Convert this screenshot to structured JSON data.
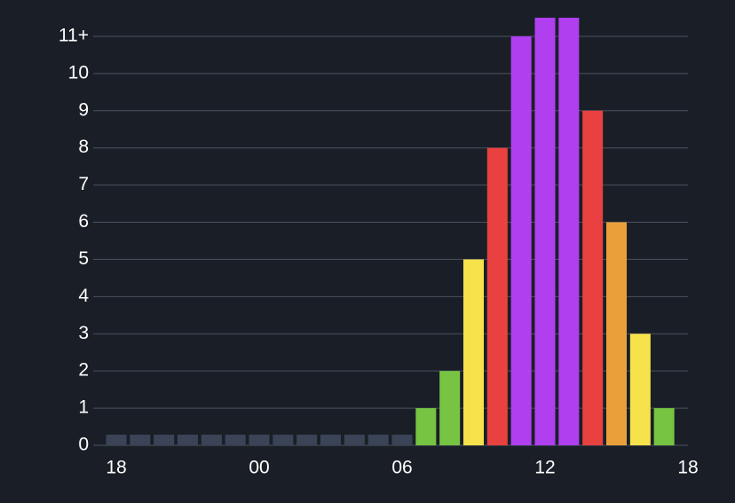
{
  "chart_data": {
    "type": "bar",
    "x": [
      0,
      1,
      2,
      3,
      4,
      5,
      6,
      7,
      8,
      9,
      10,
      11,
      12,
      13,
      14,
      15,
      16,
      17,
      18,
      19,
      20,
      21,
      22,
      23
    ],
    "values": [
      0,
      0,
      0,
      0,
      0,
      0,
      0,
      0,
      0,
      0,
      0,
      0,
      0,
      1,
      2,
      5,
      8,
      11,
      11.5,
      11.5,
      9,
      6,
      3,
      1
    ],
    "colors": [
      "#3b4457",
      "#3b4457",
      "#3b4457",
      "#3b4457",
      "#3b4457",
      "#3b4457",
      "#3b4457",
      "#3b4457",
      "#3b4457",
      "#3b4457",
      "#3b4457",
      "#3b4457",
      "#3b4457",
      "#76c442",
      "#76c442",
      "#f6e24b",
      "#e8413f",
      "#b03ff0",
      "#b03ff0",
      "#b03ff0",
      "#e8413f",
      "#eb9f3a",
      "#f6e24b",
      "#76c442"
    ],
    "xlim": [
      0,
      24
    ],
    "xticks": [
      {
        "value": 0,
        "label": "18"
      },
      {
        "value": 6,
        "label": "00"
      },
      {
        "value": 12,
        "label": "06"
      },
      {
        "value": 18,
        "label": "12"
      },
      {
        "value": 24,
        "label": "18"
      }
    ],
    "ylim": [
      0,
      11.5
    ],
    "yticks": [
      0,
      1,
      2,
      3,
      4,
      5,
      6,
      7,
      8,
      9,
      10,
      {
        "value": 11,
        "label": "11+"
      }
    ],
    "grid": true
  }
}
